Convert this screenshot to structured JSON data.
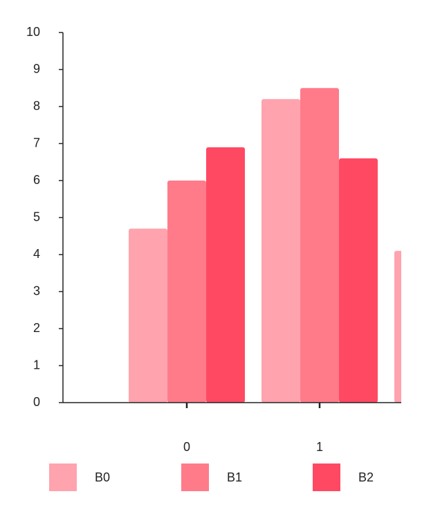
{
  "chart_data": {
    "type": "bar",
    "categories": [
      "0",
      "1",
      null
    ],
    "series": [
      {
        "name": "B0",
        "color": "#ffa3ae",
        "values": [
          4.7,
          8.2,
          4.1
        ]
      },
      {
        "name": "B1",
        "color": "#ff7b8a",
        "values": [
          6.0,
          8.5,
          null
        ]
      },
      {
        "name": "B2",
        "color": "#ff4963",
        "values": [
          6.9,
          6.6,
          null
        ]
      }
    ],
    "ylim": [
      0,
      10
    ],
    "yticks": [
      0,
      1,
      2,
      3,
      4,
      5,
      6,
      7,
      8,
      9,
      10
    ],
    "grid": false,
    "legend": "bottom"
  }
}
